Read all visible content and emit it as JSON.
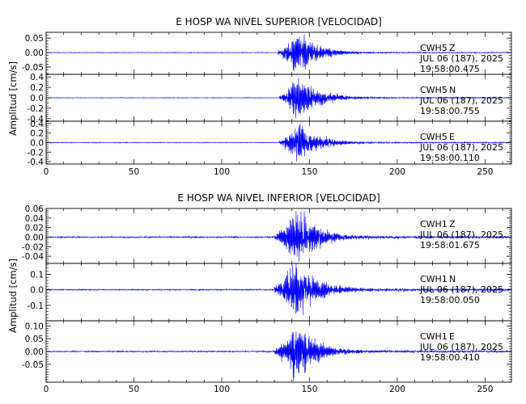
{
  "trace_color": "#0000ff",
  "axis_color": "#000000",
  "chart_data": [
    {
      "type": "line",
      "title": "E HOSP WA NIVEL SUPERIOR [VELOCIDAD]",
      "ylabel": "Amplitud [cm/s]",
      "xlim": [
        0,
        265
      ],
      "xticks": [
        "0",
        "50",
        "100",
        "150",
        "200",
        "250"
      ],
      "panels": [
        {
          "station": "CWH5",
          "component": "Z",
          "date": "JUL 06 (187), 2025",
          "time": "19:58:00.475",
          "ylim": [
            -0.075,
            0.07
          ],
          "yticks": [
            "0.05",
            "0.00",
            "-0.05"
          ],
          "onset": 132,
          "peak_time": 143,
          "peak_amp": 0.065,
          "noise_amp": 0.0008,
          "envelope": 0.045
        },
        {
          "station": "CWH5",
          "component": "N",
          "date": "JUL 06 (187), 2025",
          "time": "19:58:00.755",
          "ylim": [
            -0.45,
            0.45
          ],
          "yticks": [
            "0.4",
            "0.2",
            "0.0",
            "-0.2",
            "-0.4"
          ],
          "onset": 133,
          "peak_time": 143,
          "peak_amp": 0.4,
          "noise_amp": 0.004,
          "envelope": 0.22
        },
        {
          "station": "CWH5",
          "component": "E",
          "date": "JUL 06 (187), 2025",
          "time": "19:58:00.110",
          "ylim": [
            -0.45,
            0.45
          ],
          "yticks": [
            "0.4",
            "0.2",
            "0.0",
            "-0.2",
            "-0.4"
          ],
          "onset": 133,
          "peak_time": 143,
          "peak_amp": 0.4,
          "noise_amp": 0.006,
          "envelope": 0.28
        }
      ]
    },
    {
      "type": "line",
      "title": "E HOSP WA NIVEL INFERIOR [VELOCIDAD]",
      "ylabel": "Amplitud [cm/s]",
      "xlim": [
        0,
        265
      ],
      "xticks": [
        "0",
        "50",
        "100",
        "150",
        "200",
        "250"
      ],
      "panels": [
        {
          "station": "CWH1",
          "component": "Z",
          "date": "JUL 06 (187), 2025",
          "time": "19:58:01.675",
          "ylim": [
            -0.055,
            0.06
          ],
          "yticks": [
            "0.06",
            "0.04",
            "0.02",
            "0.00",
            "-0.02",
            "-0.04"
          ],
          "onset": 130,
          "peak_time": 143,
          "peak_amp": 0.055,
          "noise_amp": 0.0012,
          "envelope": 0.035
        },
        {
          "station": "CWH1",
          "component": "N",
          "date": "JUL 06 (187), 2025",
          "time": "19:58:00.050",
          "ylim": [
            -0.2,
            0.17
          ],
          "yticks": [
            "0.1",
            "0.0",
            "-0.1"
          ],
          "onset": 130,
          "peak_time": 142,
          "peak_amp": 0.17,
          "noise_amp": 0.003,
          "envelope": 0.09
        },
        {
          "station": "CWH1",
          "component": "E",
          "date": "JUL 06 (187), 2025",
          "time": "19:58:00.410",
          "ylim": [
            -0.12,
            0.12
          ],
          "yticks": [
            "0.10",
            "0.05",
            "0.00",
            "-0.05"
          ],
          "onset": 130,
          "peak_time": 143,
          "peak_amp": 0.115,
          "noise_amp": 0.002,
          "envelope": 0.07
        }
      ]
    }
  ]
}
